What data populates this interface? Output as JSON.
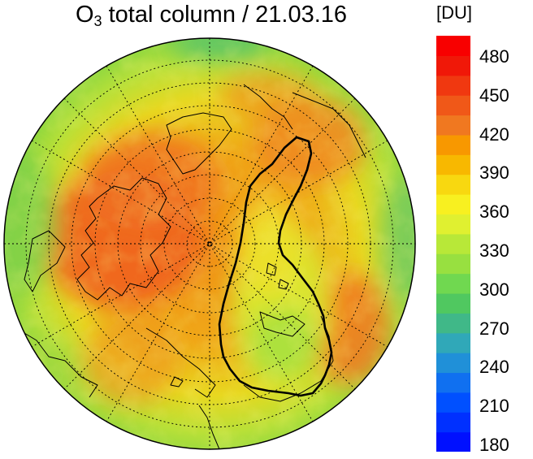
{
  "title": {
    "species": "O",
    "subscript": "3",
    "rest": " total column / 21.03.16"
  },
  "colorbar": {
    "unit": "[DU]",
    "ticks": [
      "480",
      "450",
      "420",
      "390",
      "360",
      "330",
      "300",
      "270",
      "240",
      "210",
      "180"
    ],
    "min": 180,
    "max": 495,
    "bands": [
      "#0010ff",
      "#0030ff",
      "#0050ff",
      "#1070f0",
      "#2090d8",
      "#30a8b8",
      "#40b888",
      "#50c860",
      "#70d850",
      "#98e040",
      "#b8e838",
      "#e0f030",
      "#f8f020",
      "#f8d810",
      "#f8b800",
      "#f89800",
      "#f07820",
      "#f05818",
      "#f03810",
      "#f01808",
      "#f80000"
    ]
  },
  "map": {
    "projection": "north polar stereographic",
    "features": [
      "land-outline",
      "graticule",
      "vortex-contour"
    ]
  }
}
